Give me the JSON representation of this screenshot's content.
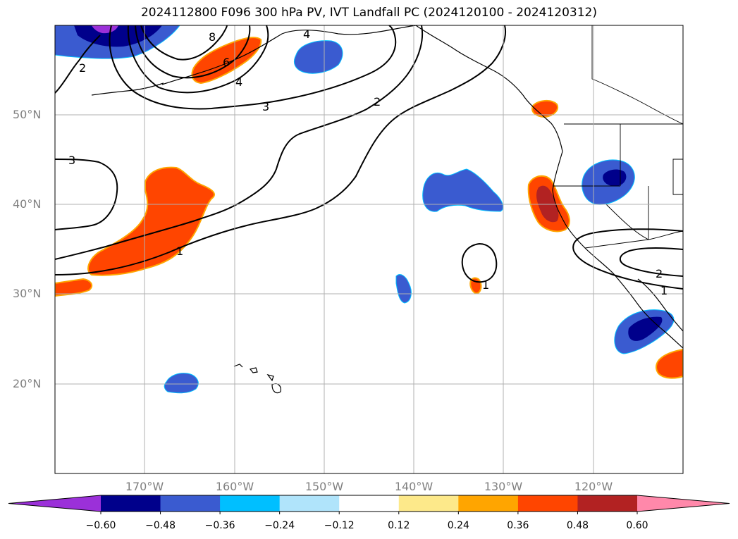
{
  "title": "2024112800 F096 300 hPa PV, IVT Landfall PC (2024120100 - 2024120312)",
  "lat_ticks": [
    "50°N",
    "40°N",
    "30°N",
    "20°N"
  ],
  "lon_ticks": [
    "170°W",
    "160°W",
    "150°W",
    "140°W",
    "130°W",
    "120°W"
  ],
  "contour_labels": [
    "8",
    "6",
    "4",
    "4",
    "3",
    "3",
    "2",
    "2",
    "2",
    "1",
    "1",
    "1"
  ],
  "colorbar": {
    "levels": [
      "−0.60",
      "−0.48",
      "−0.36",
      "−0.24",
      "−0.12",
      "0.12",
      "0.24",
      "0.36",
      "0.48",
      "0.60"
    ],
    "colors": [
      "#9b30d9",
      "#00008b",
      "#3a5bd0",
      "#00bfff",
      "#b0e4fb",
      "#ffffff",
      "#fde98a",
      "#ffa500",
      "#ff4500",
      "#b22222",
      "#ff88aa"
    ]
  }
}
